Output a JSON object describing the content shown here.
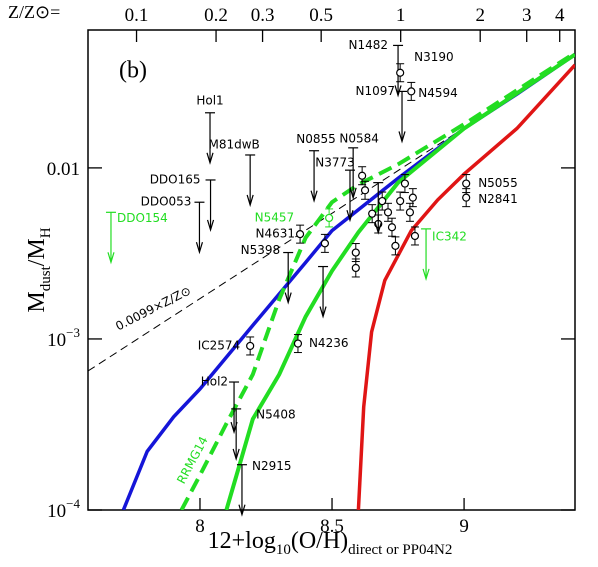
{
  "chart_data": {
    "type": "scatter",
    "panel_label": "(b)",
    "xlabel": [
      "12+log",
      "10",
      "(O/H)",
      "direct or PP04N2"
    ],
    "ylabel": [
      "M",
      "dust",
      "/M",
      "H"
    ],
    "x2label": "Z/Z⊙=",
    "xlim": [
      7.576,
      9.42
    ],
    "xticks": [
      8,
      8.5,
      9
    ],
    "ylim": [
      0.0001,
      0.064
    ],
    "ylog": true,
    "yticks": [
      {
        "value": 0.0001,
        "label": [
          "10",
          "−4"
        ]
      },
      {
        "value": 0.001,
        "label": [
          "10",
          "−3"
        ]
      },
      0.01
    ],
    "x2lim": [
      0.0655,
      4.57
    ],
    "x2log": true,
    "x2ticks": [
      0.1,
      0.2,
      0.3,
      0.5,
      1,
      2,
      3,
      4
    ],
    "series": [
      {
        "name": "0.0099×Z/Z⊙",
        "color": "#000000",
        "dash": true,
        "width": 1,
        "x": [
          7.576,
          9.42
        ],
        "values": [
          0.00065,
          0.045
        ]
      },
      {
        "color": "#1515d8",
        "dash": false,
        "width": 3.5,
        "x": [
          7.71,
          7.8,
          7.9,
          8.0,
          8.2,
          8.4,
          8.5,
          8.75,
          9.0,
          9.2,
          9.42
        ],
        "values": [
          0.0001,
          0.00022,
          0.00035,
          0.00051,
          0.0012,
          0.0028,
          0.0043,
          0.0087,
          0.017,
          0.027,
          0.046
        ]
      },
      {
        "color": "#22dd22",
        "dash": false,
        "width": 4,
        "x": [
          8.1,
          8.15,
          8.2,
          8.3,
          8.4,
          8.5,
          8.6,
          8.75,
          9.0,
          9.42
        ],
        "values": [
          0.0001,
          0.000184,
          0.00034,
          0.00062,
          0.00135,
          0.0025,
          0.0042,
          0.0082,
          0.017,
          0.046
        ]
      },
      {
        "name": "RRMG14",
        "color": "#22dd22",
        "dash": true,
        "width": 4,
        "x": [
          7.93,
          8.0,
          8.1,
          8.2,
          8.3,
          8.4,
          8.5,
          8.6,
          8.75,
          9.0,
          9.42
        ],
        "values": [
          0.0001,
          0.00016,
          0.00032,
          0.00062,
          0.0017,
          0.0039,
          0.0063,
          0.008,
          0.0105,
          0.018,
          0.047
        ]
      },
      {
        "color": "#e01515",
        "dash": false,
        "width": 3.5,
        "x": [
          8.6,
          8.62,
          8.65,
          8.7,
          8.8,
          8.9,
          9.0,
          9.2,
          9.42
        ],
        "values": [
          0.0001,
          0.0004,
          0.0011,
          0.0022,
          0.0043,
          0.0065,
          0.0092,
          0.017,
          0.04
        ]
      }
    ],
    "galaxies": [
      {
        "name": "Hol1",
        "x": 8.038,
        "y": 0.021,
        "limit": true,
        "color": "#000000"
      },
      {
        "name": "M81dwB",
        "x": 8.19,
        "y": 0.0119,
        "limit": true,
        "color": "#000000"
      },
      {
        "name": "DDO165",
        "x": 8.04,
        "y": 0.0085,
        "limit": true,
        "color": "#000000"
      },
      {
        "name": "DDO053",
        "x": 7.998,
        "y": 0.0063,
        "limit": true,
        "color": "#000000"
      },
      {
        "name": "DDO154",
        "x": 7.663,
        "y": 0.0055,
        "limit": true,
        "color": "#22dd22"
      },
      {
        "name": "N0855",
        "x": 8.432,
        "y": 0.0126,
        "limit": true,
        "color": "#000000"
      },
      {
        "name": "N0584",
        "x": 8.58,
        "y": 0.0131,
        "limit": true,
        "color": "#000000"
      },
      {
        "name": "N3773",
        "x": 8.568,
        "y": 0.0097,
        "limit": true,
        "color": "#000000"
      },
      {
        "name": "N1482",
        "x": 8.75,
        "y": 0.052,
        "limit": true,
        "color": "#000000"
      },
      {
        "name": "N3190",
        "x": 8.758,
        "y": 0.036,
        "limit": false,
        "color": "#000000"
      },
      {
        "name": "N1097",
        "x": 8.765,
        "y": 0.028,
        "limit": true,
        "color": "#000000"
      },
      {
        "name": "N4594",
        "x": 8.8,
        "y": 0.028,
        "limit": false,
        "color": "#000000"
      },
      {
        "name": "N5457",
        "x": 8.489,
        "y": 0.0051,
        "limit": false,
        "color": "#22dd22"
      },
      {
        "name": "N4631",
        "x": 8.379,
        "y": 0.0041,
        "limit": false,
        "color": "#000000"
      },
      {
        "name": "N5398",
        "x": 8.334,
        "y": 0.0032,
        "limit": true,
        "color": "#000000"
      },
      {
        "name": "IC342",
        "x": 8.856,
        "y": 0.0044,
        "limit": true,
        "color": "#22dd22"
      },
      {
        "name": "N5055",
        "x": 9.008,
        "y": 0.0081,
        "limit": false,
        "color": "#000000"
      },
      {
        "name": "N2841",
        "x": 9.008,
        "y": 0.0067,
        "limit": false,
        "color": "#000000"
      },
      {
        "name": "IC2574",
        "x": 8.19,
        "y": 0.00091,
        "limit": false,
        "color": "#000000"
      },
      {
        "name": "N4236",
        "x": 8.371,
        "y": 0.00094,
        "limit": false,
        "color": "#000000"
      },
      {
        "name": "Hol2",
        "x": 8.129,
        "y": 0.00056,
        "limit": true,
        "color": "#000000"
      },
      {
        "name": "N5408",
        "x": 8.137,
        "y": 0.00039,
        "limit": true,
        "color": "#000000"
      },
      {
        "name": "N2915",
        "x": 8.159,
        "y": 0.000184,
        "limit": true,
        "color": "#000000"
      },
      {
        "x": 8.473,
        "y": 0.00362,
        "limit": false,
        "color": "#000000"
      },
      {
        "x": 8.466,
        "y": 0.00265,
        "limit": true,
        "color": "#000000"
      },
      {
        "x": 8.59,
        "y": 0.0032,
        "limit": false,
        "color": "#000000"
      },
      {
        "x": 8.59,
        "y": 0.0026,
        "limit": false,
        "color": "#000000"
      },
      {
        "x": 8.614,
        "y": 0.009,
        "limit": false,
        "color": "#000000"
      },
      {
        "x": 8.625,
        "y": 0.0074,
        "limit": false,
        "color": "#000000"
      },
      {
        "x": 8.652,
        "y": 0.0054,
        "limit": false,
        "color": "#000000"
      },
      {
        "x": 8.675,
        "y": 0.0047,
        "limit": false,
        "color": "#000000"
      },
      {
        "x": 8.69,
        "y": 0.0064,
        "limit": false,
        "color": "#000000"
      },
      {
        "x": 8.712,
        "y": 0.0055,
        "limit": false,
        "color": "#000000"
      },
      {
        "x": 8.727,
        "y": 0.0045,
        "limit": false,
        "color": "#000000"
      },
      {
        "x": 8.74,
        "y": 0.0035,
        "limit": false,
        "color": "#000000"
      },
      {
        "x": 8.758,
        "y": 0.0064,
        "limit": false,
        "color": "#000000"
      },
      {
        "x": 8.776,
        "y": 0.0081,
        "limit": false,
        "color": "#000000"
      },
      {
        "x": 8.795,
        "y": 0.0055,
        "limit": false,
        "color": "#000000"
      },
      {
        "x": 8.806,
        "y": 0.0067,
        "limit": false,
        "color": "#000000"
      },
      {
        "x": 8.814,
        "y": 0.004,
        "limit": false,
        "color": "#000000"
      },
      {
        "x": 8.675,
        "y": 0.0082,
        "limit": true,
        "color": "#000000"
      }
    ]
  }
}
